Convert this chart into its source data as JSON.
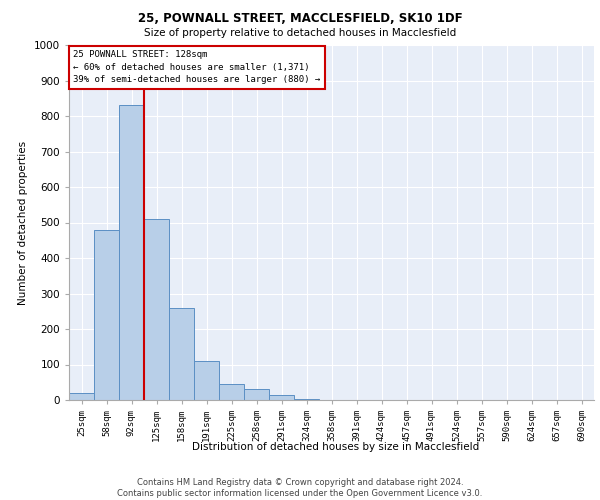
{
  "title_line1": "25, POWNALL STREET, MACCLESFIELD, SK10 1DF",
  "title_line2": "Size of property relative to detached houses in Macclesfield",
  "xlabel": "Distribution of detached houses by size in Macclesfield",
  "ylabel": "Number of detached properties",
  "footer_line1": "Contains HM Land Registry data © Crown copyright and database right 2024.",
  "footer_line2": "Contains public sector information licensed under the Open Government Licence v3.0.",
  "bar_labels": [
    "25sqm",
    "58sqm",
    "92sqm",
    "125sqm",
    "158sqm",
    "191sqm",
    "225sqm",
    "258sqm",
    "291sqm",
    "324sqm",
    "358sqm",
    "391sqm",
    "424sqm",
    "457sqm",
    "491sqm",
    "524sqm",
    "557sqm",
    "590sqm",
    "624sqm",
    "657sqm",
    "690sqm"
  ],
  "bar_values": [
    20,
    480,
    830,
    510,
    260,
    110,
    45,
    30,
    15,
    3,
    0,
    0,
    0,
    0,
    0,
    0,
    0,
    0,
    0,
    0,
    0
  ],
  "bar_color": "#b8cfe8",
  "bar_edge_color": "#5b8fc4",
  "background_color": "#e8eef8",
  "grid_color": "#ffffff",
  "annotation_line1": "25 POWNALL STREET: 128sqm",
  "annotation_line2": "← 60% of detached houses are smaller (1,371)",
  "annotation_line3": "39% of semi-detached houses are larger (880) →",
  "vline_color": "#cc0000",
  "annotation_box_edge": "#cc0000",
  "ylim": [
    0,
    1000
  ],
  "yticks": [
    0,
    100,
    200,
    300,
    400,
    500,
    600,
    700,
    800,
    900,
    1000
  ],
  "vline_pos": 2.5
}
